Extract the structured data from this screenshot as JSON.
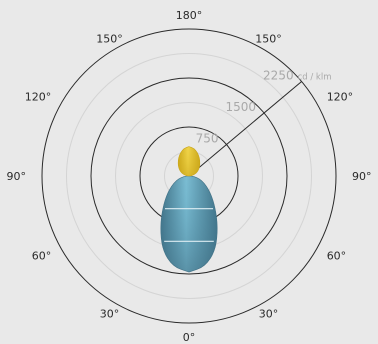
{
  "chart_data": {
    "type": "polar-luminous-intensity",
    "unit": "cd / klm",
    "rings": [
      {
        "value": 750,
        "label": "750",
        "style": "solid"
      },
      {
        "value": 1500,
        "label": "1500",
        "style": "solid"
      },
      {
        "value": 2250,
        "label": "2250",
        "style": "solid"
      }
    ],
    "minor_rings": [
      375,
      1125,
      1875
    ],
    "rmax": 2250,
    "angle_labels": [
      {
        "text": "180°",
        "angle": 180,
        "side": "center"
      },
      {
        "text": "150°",
        "angle": 150,
        "side": "left"
      },
      {
        "text": "150°",
        "angle": 150,
        "side": "right"
      },
      {
        "text": "120°",
        "angle": 120,
        "side": "left"
      },
      {
        "text": "120°",
        "angle": 120,
        "side": "right"
      },
      {
        "text": "90°",
        "angle": 90,
        "side": "left"
      },
      {
        "text": "90°",
        "angle": 90,
        "side": "right"
      },
      {
        "text": "60°",
        "angle": 60,
        "side": "left"
      },
      {
        "text": "60°",
        "angle": 60,
        "side": "right"
      },
      {
        "text": "30°",
        "angle": 30,
        "side": "left"
      },
      {
        "text": "30°",
        "angle": 30,
        "side": "right"
      },
      {
        "text": "0°",
        "angle": 0,
        "side": "center"
      }
    ],
    "radial_line_angle": 130,
    "series": [
      {
        "color": "#5ba3bd",
        "highlight": "#7bbdd3",
        "shadow": "#3f6f84",
        "direction": "down",
        "points": [
          [
            0,
            1470
          ],
          [
            10,
            1410
          ],
          [
            20,
            1200
          ],
          [
            30,
            880
          ],
          [
            40,
            620
          ],
          [
            50,
            440
          ],
          [
            60,
            310
          ],
          [
            70,
            210
          ],
          [
            80,
            120
          ],
          [
            90,
            40
          ]
        ]
      },
      {
        "color": "#e4c22a",
        "highlight": "#f0d44a",
        "shadow": "#c9a519",
        "direction": "up",
        "points": [
          [
            180,
            450
          ],
          [
            170,
            430
          ],
          [
            160,
            380
          ],
          [
            150,
            320
          ],
          [
            140,
            260
          ],
          [
            130,
            210
          ],
          [
            120,
            160
          ],
          [
            110,
            110
          ],
          [
            100,
            60
          ],
          [
            90,
            20
          ]
        ]
      }
    ],
    "series_bands": [
      {
        "series": 0,
        "values": [
          500,
          1000
        ]
      }
    ],
    "colors": {
      "background": "#e9e9e9",
      "ring": "#2a2a2a",
      "minor_ring": "#d4d4d4",
      "band": "#dcecf2"
    }
  }
}
